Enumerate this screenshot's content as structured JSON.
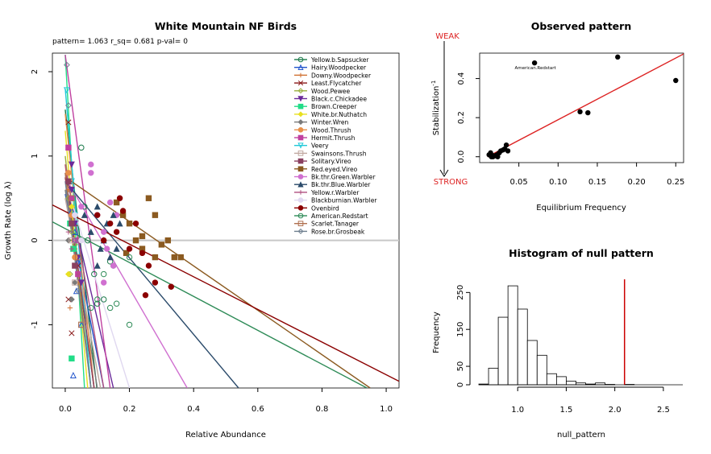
{
  "chart_data": [
    {
      "type": "scatter",
      "title": "White Mountain NF Birds",
      "subtitle": "pattern= 1.063 r_sq= 0.681 p-val= 0",
      "xlabel": "Relative Abundance",
      "ylabel": "Growth Rate (log  λ)",
      "xlim": [
        -0.04,
        1.04
      ],
      "ylim": [
        -1.75,
        2.22
      ],
      "xticks": [
        "0.0",
        "0.2",
        "0.4",
        "0.6",
        "0.8",
        "1.0"
      ],
      "yticks": [
        "-1",
        "0",
        "1",
        "2"
      ],
      "reference_line_y": 0,
      "legend_position": "top-right",
      "series": [
        {
          "name": "Yellow.b.Sapsucker",
          "color": "#1b7a4a",
          "marker": "circle-open",
          "line": [
            [
              0.0,
              1.55
            ],
            [
              0.1,
              -1.8
            ]
          ],
          "points": [
            [
              0.05,
              1.1
            ],
            [
              0.06,
              0.4
            ],
            [
              0.07,
              0.0
            ],
            [
              0.09,
              -0.4
            ],
            [
              0.1,
              -0.75
            ],
            [
              0.12,
              -0.7
            ],
            [
              0.14,
              -0.25
            ],
            [
              0.15,
              -0.3
            ]
          ]
        },
        {
          "name": "Hairy.Woodpecker",
          "color": "#2255cc",
          "marker": "triangle-open",
          "line": [
            [
              0.0,
              0.55
            ],
            [
              0.12,
              -1.75
            ]
          ],
          "points": [
            [
              0.02,
              0.35
            ],
            [
              0.03,
              0.1
            ],
            [
              0.04,
              -0.25
            ],
            [
              0.025,
              -1.6
            ],
            [
              0.035,
              -0.6
            ],
            [
              0.05,
              -1.0
            ]
          ]
        },
        {
          "name": "Downy.Woodpecker",
          "color": "#d07030",
          "marker": "plus",
          "line": [
            [
              0.0,
              0.9
            ],
            [
              0.08,
              -1.75
            ]
          ],
          "points": [
            [
              0.01,
              0.6
            ],
            [
              0.02,
              0.2
            ],
            [
              0.03,
              -0.1
            ],
            [
              0.04,
              -0.5
            ],
            [
              0.015,
              -0.8
            ]
          ]
        },
        {
          "name": "Least.Flycatcher",
          "color": "#8b1a1a",
          "marker": "x",
          "line": [
            [
              0.0,
              0.75
            ],
            [
              0.09,
              -1.75
            ]
          ],
          "points": [
            [
              0.01,
              1.4
            ],
            [
              0.01,
              1.1
            ],
            [
              0.02,
              0.5
            ],
            [
              0.03,
              0.2
            ],
            [
              0.01,
              -0.7
            ],
            [
              0.02,
              -1.1
            ],
            [
              0.04,
              -0.3
            ]
          ]
        },
        {
          "name": "Wood.Pewee",
          "color": "#9ab040",
          "marker": "diamond-open",
          "line": [
            [
              0.0,
              1.0
            ],
            [
              0.08,
              -1.75
            ]
          ],
          "points": [
            [
              0.01,
              0.5
            ],
            [
              0.015,
              -0.4
            ],
            [
              0.02,
              0.1
            ],
            [
              0.03,
              -0.05
            ]
          ]
        },
        {
          "name": "Black.c.Chickadee",
          "color": "#6a2a9a",
          "marker": "triangle-down",
          "line": [
            [
              0.0,
              0.7
            ],
            [
              0.15,
              -1.75
            ]
          ],
          "points": [
            [
              0.02,
              0.9
            ],
            [
              0.02,
              0.6
            ],
            [
              0.03,
              0.2
            ],
            [
              0.04,
              -0.2
            ],
            [
              0.05,
              -0.5
            ]
          ]
        },
        {
          "name": "Brown.Creeper",
          "color": "#22dd88",
          "marker": "square",
          "line": [
            [
              0.0,
              2.2
            ],
            [
              0.06,
              -1.75
            ]
          ],
          "points": [
            [
              0.015,
              0.2
            ],
            [
              0.02,
              -1.4
            ],
            [
              0.025,
              -0.1
            ]
          ]
        },
        {
          "name": "White.br.Nuthatch",
          "color": "#e8e020",
          "marker": "diamond",
          "line": [
            [
              0.0,
              1.3
            ],
            [
              0.07,
              -1.75
            ]
          ],
          "points": [
            [
              0.01,
              -0.4
            ],
            [
              0.02,
              0.4
            ],
            [
              0.025,
              0.0
            ]
          ]
        },
        {
          "name": "Winter.Wren",
          "color": "#7a7a7a",
          "marker": "diamond",
          "line": [
            [
              0.0,
              0.6
            ],
            [
              0.1,
              -1.75
            ]
          ],
          "points": [
            [
              0.01,
              0.0
            ],
            [
              0.02,
              -0.7
            ],
            [
              0.03,
              -0.5
            ]
          ]
        },
        {
          "name": "Wood.Thrush",
          "color": "#e8904a",
          "marker": "circle",
          "line": [
            [
              0.0,
              1.5
            ],
            [
              0.09,
              -1.75
            ]
          ],
          "points": [
            [
              0.01,
              0.8
            ],
            [
              0.02,
              0.3
            ],
            [
              0.03,
              -0.2
            ]
          ]
        },
        {
          "name": "Hermit.Thrush",
          "color": "#c040a0",
          "marker": "square-x",
          "line": [
            [
              0.0,
              2.2
            ],
            [
              0.14,
              -1.75
            ]
          ],
          "points": [
            [
              0.01,
              1.1
            ],
            [
              0.02,
              0.5
            ],
            [
              0.03,
              0.0
            ],
            [
              0.04,
              -0.4
            ]
          ]
        },
        {
          "name": "Veery",
          "color": "#20c8d8",
          "marker": "triangle-down-open",
          "line": [
            [
              0.0,
              1.8
            ],
            [
              0.08,
              -1.75
            ]
          ],
          "points": [
            [
              0.005,
              1.78
            ],
            [
              0.02,
              0.7
            ],
            [
              0.03,
              0.3
            ]
          ]
        },
        {
          "name": "Swainsons.Thrush",
          "color": "#c0a8a0",
          "marker": "square-open",
          "line": [
            [
              0.0,
              0.5
            ],
            [
              0.11,
              -1.75
            ]
          ],
          "points": [
            [
              0.02,
              0.0
            ],
            [
              0.03,
              -0.5
            ],
            [
              0.05,
              -1.0
            ]
          ]
        },
        {
          "name": "Solitary.Vireo",
          "color": "#8a4060",
          "marker": "square",
          "line": [
            [
              0.0,
              0.8
            ],
            [
              0.09,
              -1.75
            ]
          ],
          "points": [
            [
              0.01,
              0.7
            ],
            [
              0.02,
              0.2
            ],
            [
              0.03,
              -0.3
            ]
          ]
        },
        {
          "name": "Red.eyed.Vireo",
          "color": "#8b5a20",
          "marker": "square",
          "line": [
            [
              0.0,
              0.75
            ],
            [
              0.95,
              -1.75
            ]
          ],
          "points": [
            [
              0.16,
              0.45
            ],
            [
              0.18,
              0.3
            ],
            [
              0.2,
              0.2
            ],
            [
              0.22,
              0.0
            ],
            [
              0.24,
              -0.1
            ],
            [
              0.26,
              0.5
            ],
            [
              0.28,
              0.3
            ],
            [
              0.3,
              -0.05
            ],
            [
              0.32,
              0.0
            ],
            [
              0.34,
              -0.2
            ],
            [
              0.36,
              -0.2
            ],
            [
              0.28,
              -0.2
            ],
            [
              0.24,
              0.05
            ],
            [
              0.19,
              -0.15
            ]
          ]
        },
        {
          "name": "Bk.thr.Green.Warbler",
          "color": "#d070d0",
          "marker": "circle",
          "line": [
            [
              0.0,
              0.75
            ],
            [
              0.38,
              -1.75
            ]
          ],
          "points": [
            [
              0.05,
              0.4
            ],
            [
              0.08,
              0.8
            ],
            [
              0.08,
              0.9
            ],
            [
              0.1,
              0.3
            ],
            [
              0.12,
              0.1
            ],
            [
              0.13,
              -0.1
            ],
            [
              0.14,
              0.45
            ],
            [
              0.15,
              -0.3
            ],
            [
              0.16,
              0.3
            ],
            [
              0.12,
              -0.5
            ]
          ]
        },
        {
          "name": "Bk.thr.Blue.Warbler",
          "color": "#2a4a6a",
          "marker": "triangle",
          "line": [
            [
              0.0,
              0.7
            ],
            [
              0.54,
              -1.75
            ]
          ],
          "points": [
            [
              0.06,
              0.3
            ],
            [
              0.08,
              0.1
            ],
            [
              0.1,
              0.4
            ],
            [
              0.11,
              -0.1
            ],
            [
              0.12,
              0.0
            ],
            [
              0.13,
              0.2
            ],
            [
              0.14,
              -0.2
            ],
            [
              0.15,
              0.3
            ],
            [
              0.16,
              -0.1
            ],
            [
              0.17,
              0.2
            ],
            [
              0.1,
              -0.3
            ]
          ]
        },
        {
          "name": "Yellow.r.Warbler",
          "color": "#b05080",
          "marker": "plus",
          "line": [
            [
              0.0,
              0.9
            ],
            [
              0.12,
              -1.75
            ]
          ],
          "points": [
            [
              0.01,
              0.1
            ],
            [
              0.02,
              -0.1
            ],
            [
              0.04,
              -0.4
            ]
          ]
        },
        {
          "name": "Blackburnian.Warbler",
          "color": "#e0d8f0",
          "marker": "circle",
          "line": [
            [
              0.0,
              0.7
            ],
            [
              0.2,
              -1.75
            ]
          ],
          "points": [
            [
              0.03,
              0.3
            ],
            [
              0.05,
              0.0
            ]
          ]
        },
        {
          "name": "Ovenbird",
          "color": "#8b0000",
          "marker": "circle",
          "line": [
            [
              -0.04,
              0.42
            ],
            [
              1.04,
              -1.67
            ]
          ],
          "points": [
            [
              0.1,
              0.3
            ],
            [
              0.12,
              0.0
            ],
            [
              0.14,
              0.2
            ],
            [
              0.16,
              0.1
            ],
            [
              0.17,
              0.5
            ],
            [
              0.18,
              0.35
            ],
            [
              0.2,
              -0.1
            ],
            [
              0.22,
              0.2
            ],
            [
              0.24,
              -0.15
            ],
            [
              0.26,
              -0.3
            ],
            [
              0.28,
              -0.5
            ],
            [
              0.33,
              -0.55
            ],
            [
              0.25,
              -0.65
            ]
          ]
        },
        {
          "name": "American.Redstart",
          "color": "#2e8b57",
          "marker": "circle-open",
          "line": [
            [
              -0.04,
              0.22
            ],
            [
              0.94,
              -1.75
            ]
          ],
          "points": [
            [
              0.08,
              -0.8
            ],
            [
              0.1,
              -0.7
            ],
            [
              0.14,
              -0.8
            ],
            [
              0.16,
              -0.75
            ],
            [
              0.2,
              -1.0
            ],
            [
              0.12,
              -0.4
            ],
            [
              0.2,
              -0.2
            ]
          ]
        },
        {
          "name": "Scarlet.Tanager",
          "color": "#b07050",
          "marker": "square-open",
          "line": [
            [
              0.0,
              0.8
            ],
            [
              0.08,
              -1.75
            ]
          ],
          "points": [
            [
              0.02,
              0.5
            ],
            [
              0.04,
              -0.2
            ],
            [
              0.05,
              -1.0
            ]
          ]
        },
        {
          "name": "Rose.br.Grosbeak",
          "color": "#708090",
          "marker": "diamond-open",
          "line": [
            [
              0.0,
              0.7
            ],
            [
              0.08,
              -1.75
            ]
          ],
          "points": [
            [
              0.005,
              2.08
            ],
            [
              0.01,
              1.6
            ],
            [
              0.03,
              0.0
            ],
            [
              0.04,
              -0.6
            ]
          ]
        }
      ]
    },
    {
      "type": "scatter",
      "title": "Observed pattern",
      "xlabel": "Equilibrium Frequency",
      "ylabel": "Stabilization",
      "ylabel_superscript": "-1",
      "xlim": [
        0.0,
        0.26
      ],
      "ylim": [
        -0.03,
        0.53
      ],
      "xticks": [
        "0.05",
        "0.10",
        "0.15",
        "0.20",
        "0.25"
      ],
      "yticks": [
        "0.0",
        "0.2",
        "0.4"
      ],
      "annotations": {
        "top": "WEAK",
        "bottom": "STRONG",
        "point_label": "American.Redstart"
      },
      "labeled_point": [
        0.07,
        0.48
      ],
      "fit_line": [
        [
          0.01,
          0.0
        ],
        [
          0.262,
          0.53
        ]
      ],
      "points": [
        [
          0.012,
          0.01
        ],
        [
          0.015,
          0.0
        ],
        [
          0.017,
          0.0
        ],
        [
          0.02,
          0.005
        ],
        [
          0.022,
          0.01
        ],
        [
          0.025,
          0.02
        ],
        [
          0.027,
          0.03
        ],
        [
          0.03,
          0.035
        ],
        [
          0.032,
          0.04
        ],
        [
          0.034,
          0.06
        ],
        [
          0.036,
          0.03
        ],
        [
          0.014,
          0.02
        ],
        [
          0.018,
          0.005
        ],
        [
          0.023,
          0.0
        ],
        [
          0.07,
          0.48
        ],
        [
          0.128,
          0.23
        ],
        [
          0.138,
          0.225
        ],
        [
          0.176,
          0.51
        ],
        [
          0.25,
          0.39
        ]
      ]
    },
    {
      "type": "bar",
      "title": "Histogram of null pattern",
      "xlabel": "null_pattern",
      "ylabel": "Frequency",
      "xlim": [
        0.6,
        2.7
      ],
      "ylim": [
        0,
        290
      ],
      "xticks": [
        "1.0",
        "1.5",
        "2.0",
        "2.5"
      ],
      "yticks": [
        "0",
        "50",
        "150",
        "250"
      ],
      "bin_start": 0.6,
      "bin_width": 0.1,
      "values": [
        2,
        45,
        183,
        268,
        205,
        120,
        80,
        30,
        22,
        10,
        5,
        2,
        5,
        1,
        0,
        1,
        0,
        0,
        0,
        0,
        0
      ],
      "observed_value": 2.1
    }
  ]
}
